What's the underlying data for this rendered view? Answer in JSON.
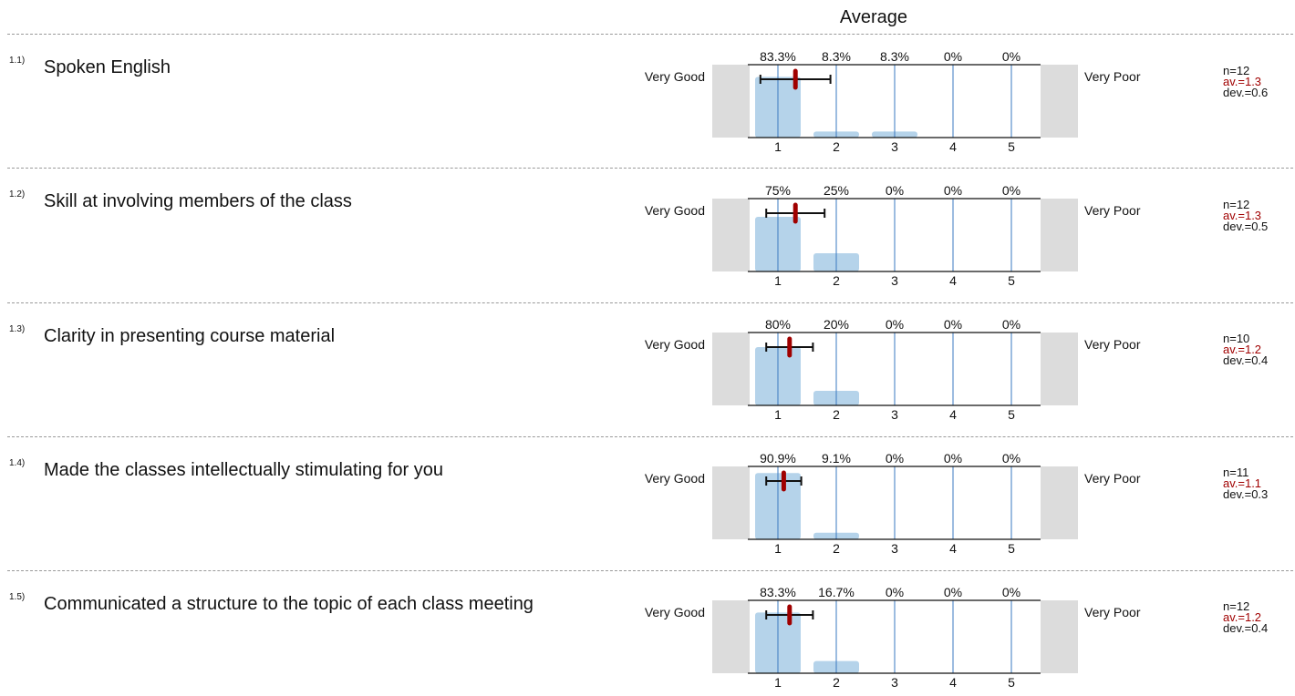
{
  "header": {
    "title": "Average"
  },
  "scale": {
    "left_label": "Very Good",
    "right_label": "Very Poor",
    "ticks": [
      "1",
      "2",
      "3",
      "4",
      "5"
    ]
  },
  "colors": {
    "bar": "#b5d3ea",
    "grid_line": "#3a78c0",
    "mean_marker": "#a00000",
    "error_bar": "#111111",
    "side_box": "#dcdcdc",
    "divider": "#9a9a9a"
  },
  "questions": [
    {
      "num": "1.1)",
      "text": "Spoken English",
      "pct_labels": [
        "83.3%",
        "8.3%",
        "8.3%",
        "0%",
        "0%"
      ],
      "n": "n=12",
      "av": "av.=1.3",
      "dev": "dev.=0.6"
    },
    {
      "num": "1.2)",
      "text": "Skill at involving members of the class",
      "pct_labels": [
        "75%",
        "25%",
        "0%",
        "0%",
        "0%"
      ],
      "n": "n=12",
      "av": "av.=1.3",
      "dev": "dev.=0.5"
    },
    {
      "num": "1.3)",
      "text": "Clarity in presenting course material",
      "pct_labels": [
        "80%",
        "20%",
        "0%",
        "0%",
        "0%"
      ],
      "n": "n=10",
      "av": "av.=1.2",
      "dev": "dev.=0.4"
    },
    {
      "num": "1.4)",
      "text": "Made the classes intellectually stimulating for you",
      "pct_labels": [
        "90.9%",
        "9.1%",
        "0%",
        "0%",
        "0%"
      ],
      "n": "n=11",
      "av": "av.=1.1",
      "dev": "dev.=0.3"
    },
    {
      "num": "1.5)",
      "text": "Communicated a structure to the topic of each class meeting",
      "pct_labels": [
        "83.3%",
        "16.7%",
        "0%",
        "0%",
        "0%"
      ],
      "n": "n=12",
      "av": "av.=1.2",
      "dev": "dev.=0.4"
    }
  ],
  "chart_data": [
    {
      "type": "bar",
      "categories": [
        "1",
        "2",
        "3",
        "4",
        "5"
      ],
      "values": [
        83.3,
        8.3,
        8.3,
        0,
        0
      ],
      "mean": 1.3,
      "std_dev": 0.6,
      "n": 12,
      "ylim": [
        0,
        100
      ]
    },
    {
      "type": "bar",
      "categories": [
        "1",
        "2",
        "3",
        "4",
        "5"
      ],
      "values": [
        75,
        25,
        0,
        0,
        0
      ],
      "mean": 1.3,
      "std_dev": 0.5,
      "n": 12,
      "ylim": [
        0,
        100
      ]
    },
    {
      "type": "bar",
      "categories": [
        "1",
        "2",
        "3",
        "4",
        "5"
      ],
      "values": [
        80,
        20,
        0,
        0,
        0
      ],
      "mean": 1.2,
      "std_dev": 0.4,
      "n": 10,
      "ylim": [
        0,
        100
      ]
    },
    {
      "type": "bar",
      "categories": [
        "1",
        "2",
        "3",
        "4",
        "5"
      ],
      "values": [
        90.9,
        9.1,
        0,
        0,
        0
      ],
      "mean": 1.1,
      "std_dev": 0.3,
      "n": 11,
      "ylim": [
        0,
        100
      ]
    },
    {
      "type": "bar",
      "categories": [
        "1",
        "2",
        "3",
        "4",
        "5"
      ],
      "values": [
        83.3,
        16.7,
        0,
        0,
        0
      ],
      "mean": 1.2,
      "std_dev": 0.4,
      "n": 12,
      "ylim": [
        0,
        100
      ]
    }
  ]
}
